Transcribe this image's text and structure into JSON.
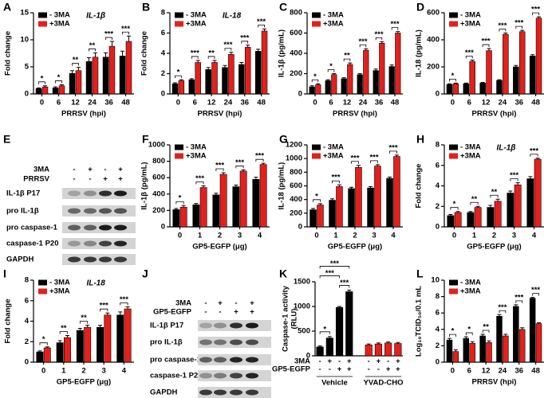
{
  "chart_data": [
    {
      "panel": "A",
      "type": "bar",
      "annotation": "IL-1β",
      "ylabel": [
        "Fold change"
      ],
      "xlabel": "PRRSV (hpi)",
      "categories": [
        "0",
        "6",
        "12",
        "24",
        "36",
        "48"
      ],
      "series": [
        {
          "name": "- 3MA",
          "color": "#000000",
          "values": [
            1,
            1.1,
            3.8,
            6,
            6.8,
            7
          ],
          "errors": [
            0.1,
            0.2,
            0.5,
            0.7,
            0.8,
            0.9
          ]
        },
        {
          "name": "+3MA",
          "color": "#e3201b",
          "values": [
            1.3,
            1.5,
            4.3,
            6.8,
            8.8,
            9.7
          ],
          "errors": [
            0.2,
            0.2,
            0.6,
            0.8,
            0.9,
            1.0
          ]
        }
      ],
      "significance": [
        "*",
        "*",
        "**",
        "**",
        "***",
        "***"
      ],
      "ylim": [
        0,
        15
      ],
      "yticks": [
        0,
        5,
        10,
        15
      ],
      "legend": "upper-left"
    },
    {
      "panel": "B",
      "type": "bar",
      "annotation": "IL-18",
      "ylabel": [
        "Fold change"
      ],
      "xlabel": "PRRSV (hpi)",
      "categories": [
        "0",
        "6",
        "12",
        "24",
        "36",
        "48"
      ],
      "series": [
        {
          "name": "- 3MA",
          "color": "#000000",
          "values": [
            1,
            1.4,
            2.4,
            2.6,
            2.9,
            4.2
          ],
          "errors": [
            0.1,
            0.1,
            0.2,
            0.2,
            0.2,
            0.2
          ]
        },
        {
          "name": "+3MA",
          "color": "#e3201b",
          "values": [
            1.3,
            3.1,
            3.1,
            3.9,
            4.6,
            6.2
          ],
          "errors": [
            0.1,
            0.2,
            0.2,
            0.2,
            0.2,
            0.2
          ]
        }
      ],
      "significance": [
        "*",
        "***",
        "**",
        "***",
        "***",
        "***"
      ],
      "ylim": [
        0,
        8
      ],
      "yticks": [
        0,
        2,
        4,
        6,
        8
      ],
      "legend": "upper-left"
    },
    {
      "panel": "C",
      "type": "bar",
      "ylabel": [
        "IL-1β (pg/mL)"
      ],
      "xlabel": "PRRSV (hpi)",
      "categories": [
        "0",
        "6",
        "12",
        "24",
        "36",
        "48"
      ],
      "series": [
        {
          "name": "- 3MA",
          "color": "#000000",
          "values": [
            70,
            130,
            150,
            190,
            230,
            270
          ],
          "errors": [
            10,
            10,
            10,
            10,
            15,
            15
          ]
        },
        {
          "name": "+3MA",
          "color": "#e3201b",
          "values": [
            90,
            190,
            290,
            430,
            500,
            600
          ],
          "errors": [
            10,
            10,
            15,
            15,
            15,
            15
          ]
        }
      ],
      "significance": [
        "*",
        "*",
        "**",
        "***",
        "***",
        "***"
      ],
      "ylim": [
        0,
        800
      ],
      "yticks": [
        0,
        200,
        400,
        600,
        800
      ],
      "legend": "upper-left"
    },
    {
      "panel": "D",
      "type": "bar",
      "ylabel": [
        "IL-18 (pg/mL)"
      ],
      "xlabel": "PRRSV (hpi)",
      "categories": [
        "0",
        "6",
        "12",
        "24",
        "36",
        "48"
      ],
      "series": [
        {
          "name": "- 3MA",
          "color": "#000000",
          "values": [
            70,
            75,
            80,
            100,
            200,
            280
          ],
          "errors": [
            5,
            5,
            5,
            5,
            10,
            10
          ]
        },
        {
          "name": "+3MA",
          "color": "#e3201b",
          "values": [
            75,
            240,
            320,
            440,
            460,
            560
          ],
          "errors": [
            5,
            10,
            15,
            10,
            10,
            10
          ]
        }
      ],
      "significance": [
        "*",
        "***",
        "***",
        "***",
        "***",
        "***"
      ],
      "ylim": [
        0,
        600
      ],
      "yticks": [
        0,
        200,
        400,
        600
      ],
      "legend": "upper-left"
    },
    {
      "panel": "F",
      "type": "bar",
      "ylabel": [
        "IL-1β (pg/mL)"
      ],
      "xlabel": "GP5-EGFP (μg)",
      "categories": [
        "0",
        "1",
        "2",
        "3",
        "4"
      ],
      "series": [
        {
          "name": "- 3MA",
          "color": "#000000",
          "values": [
            210,
            270,
            390,
            490,
            580
          ],
          "errors": [
            15,
            15,
            20,
            20,
            25
          ]
        },
        {
          "name": "+3MA",
          "color": "#e3201b",
          "values": [
            240,
            480,
            640,
            680,
            760
          ],
          "errors": [
            20,
            20,
            20,
            15,
            15
          ]
        }
      ],
      "significance": [
        "*",
        "***",
        "***",
        "***",
        "***"
      ],
      "ylim": [
        0,
        1000
      ],
      "yticks": [
        0,
        200,
        400,
        600,
        800,
        1000
      ],
      "legend": "upper-left"
    },
    {
      "panel": "G",
      "type": "bar",
      "ylabel": [
        "IL-18 (pg/mL)"
      ],
      "xlabel": "GP5-EGFP (μg)",
      "categories": [
        "0",
        "1",
        "2",
        "3",
        "4"
      ],
      "series": [
        {
          "name": "- 3MA",
          "color": "#000000",
          "values": [
            250,
            390,
            560,
            570,
            710
          ],
          "errors": [
            20,
            20,
            20,
            20,
            20
          ]
        },
        {
          "name": "+3MA",
          "color": "#e3201b",
          "values": [
            320,
            590,
            870,
            890,
            1030
          ],
          "errors": [
            20,
            25,
            30,
            20,
            20
          ]
        }
      ],
      "significance": [
        "*",
        "***",
        "***",
        "***",
        "***"
      ],
      "ylim": [
        0,
        1200
      ],
      "yticks": [
        0,
        200,
        400,
        600,
        800,
        1000,
        1200
      ],
      "legend": "upper-left"
    },
    {
      "panel": "H",
      "type": "bar",
      "annotation": "IL-1β",
      "ylabel": [
        "Fold change"
      ],
      "xlabel": "GP5-EGFP (μg)",
      "categories": [
        "0",
        "1",
        "2",
        "3",
        "4"
      ],
      "series": [
        {
          "name": "- 3MA",
          "color": "#000000",
          "values": [
            1.1,
            1.4,
            1.9,
            3.3,
            4.7
          ],
          "errors": [
            0.1,
            0.1,
            0.2,
            0.2,
            0.2
          ]
        },
        {
          "name": "+3MA",
          "color": "#e3201b",
          "values": [
            1.4,
            1.9,
            2.5,
            4.1,
            6.6
          ],
          "errors": [
            0.1,
            0.1,
            0.2,
            0.2,
            0.1
          ]
        }
      ],
      "significance": [
        "*",
        "**",
        "**",
        "***",
        "***"
      ],
      "ylim": [
        0,
        8
      ],
      "yticks": [
        0,
        2,
        4,
        6,
        8
      ],
      "legend": "upper-left"
    },
    {
      "panel": "I",
      "type": "bar",
      "annotation": "IL-18",
      "ylabel": [
        "Fold change"
      ],
      "xlabel": "GP5-EGFP (μg)",
      "categories": [
        "0",
        "1",
        "2",
        "3",
        "4"
      ],
      "series": [
        {
          "name": "- 3MA",
          "color": "#000000",
          "values": [
            1,
            1.9,
            3.1,
            3.4,
            4.6
          ],
          "errors": [
            0.1,
            0.2,
            0.2,
            0.2,
            0.3
          ]
        },
        {
          "name": "+3MA",
          "color": "#e3201b",
          "values": [
            1.4,
            2.4,
            3.4,
            4.6,
            5.2
          ],
          "errors": [
            0.1,
            0.2,
            0.2,
            0.2,
            0.2
          ]
        }
      ],
      "significance": [
        "*",
        "**",
        "**",
        "***",
        "***"
      ],
      "ylim": [
        0,
        8
      ],
      "yticks": [
        0,
        2,
        4,
        6,
        8
      ],
      "legend": "upper-left"
    },
    {
      "panel": "K",
      "type": "treatment-bar",
      "ylabel": [
        "Caspase-1 activity",
        "(RLU)"
      ],
      "treatments": [
        {
          "name": "3MA",
          "marks": [
            "-",
            "+",
            "-",
            "+",
            "-",
            "+",
            "-",
            "+"
          ]
        },
        {
          "name": "GP5-EGFP",
          "marks": [
            "-",
            "-",
            "+",
            "+",
            "-",
            "-",
            "+",
            "+"
          ]
        }
      ],
      "series": [
        {
          "name": "Vehicle",
          "color": "#000000",
          "values": [
            180,
            360,
            980,
            1300
          ],
          "errors": [
            20,
            30,
            20,
            30
          ]
        },
        {
          "name": "YVAD-CHO",
          "color": "#e3201b",
          "values": [
            220,
            240,
            260,
            250
          ],
          "errors": [
            20,
            20,
            20,
            20
          ]
        }
      ],
      "brackets": [
        {
          "label": "*",
          "bars": [
            0,
            1
          ]
        },
        {
          "label": "***",
          "bars": [
            2,
            3
          ]
        },
        {
          "label": "***",
          "bars": [
            0,
            2
          ]
        },
        {
          "label": "***",
          "bars": [
            0,
            3
          ]
        }
      ],
      "ylim": [
        0,
        1500
      ],
      "yticks": [
        0,
        500,
        1000,
        1500
      ]
    },
    {
      "panel": "L",
      "type": "bar",
      "ylabel": [
        "Log₁₀TCID₅₀/0.1 mL"
      ],
      "xlabel": "PRRSV (hpi)",
      "categories": [
        "0",
        "6",
        "12",
        "24",
        "36",
        "48"
      ],
      "series": [
        {
          "name": "- 3MA",
          "color": "#000000",
          "values": [
            2.7,
            2.9,
            3.2,
            5.6,
            6.8,
            7.8
          ],
          "errors": [
            0.2,
            0.2,
            0.2,
            0.2,
            0.2,
            0.1
          ]
        },
        {
          "name": "+3MA",
          "color": "#e3201b",
          "values": [
            1.3,
            2.3,
            2.4,
            3.2,
            4.0,
            4.7
          ],
          "errors": [
            0.2,
            0.2,
            0.2,
            0.2,
            0.2,
            0.1
          ]
        }
      ],
      "significance": [
        "*",
        "*",
        "**",
        "***",
        "***",
        "***"
      ],
      "ylim": [
        0,
        10
      ],
      "yticks": [
        0,
        2,
        4,
        6,
        8,
        10
      ],
      "legend": "upper-left"
    }
  ],
  "blots": [
    {
      "panel": "E",
      "conditions": [
        {
          "name": "3MA",
          "marks": [
            "-",
            "+",
            "-",
            "+"
          ]
        },
        {
          "name": "PRRSV",
          "marks": [
            "-",
            "-",
            "+",
            "+"
          ]
        }
      ],
      "bands": [
        "IL-1β P17",
        "pro IL-1β",
        "pro caspase-1",
        "caspase-1 P20",
        "GAPDH"
      ]
    },
    {
      "panel": "J",
      "conditions": [
        {
          "name": "3MA",
          "marks": [
            "-",
            "+",
            "-",
            "+"
          ]
        },
        {
          "name": "GP5-EGFP",
          "marks": [
            "-",
            "-",
            "+",
            "+"
          ]
        }
      ],
      "bands": [
        "IL-1β P17",
        "pro IL-1β",
        "pro caspase-1",
        "caspase-1 P20",
        "GAPDH"
      ]
    }
  ]
}
